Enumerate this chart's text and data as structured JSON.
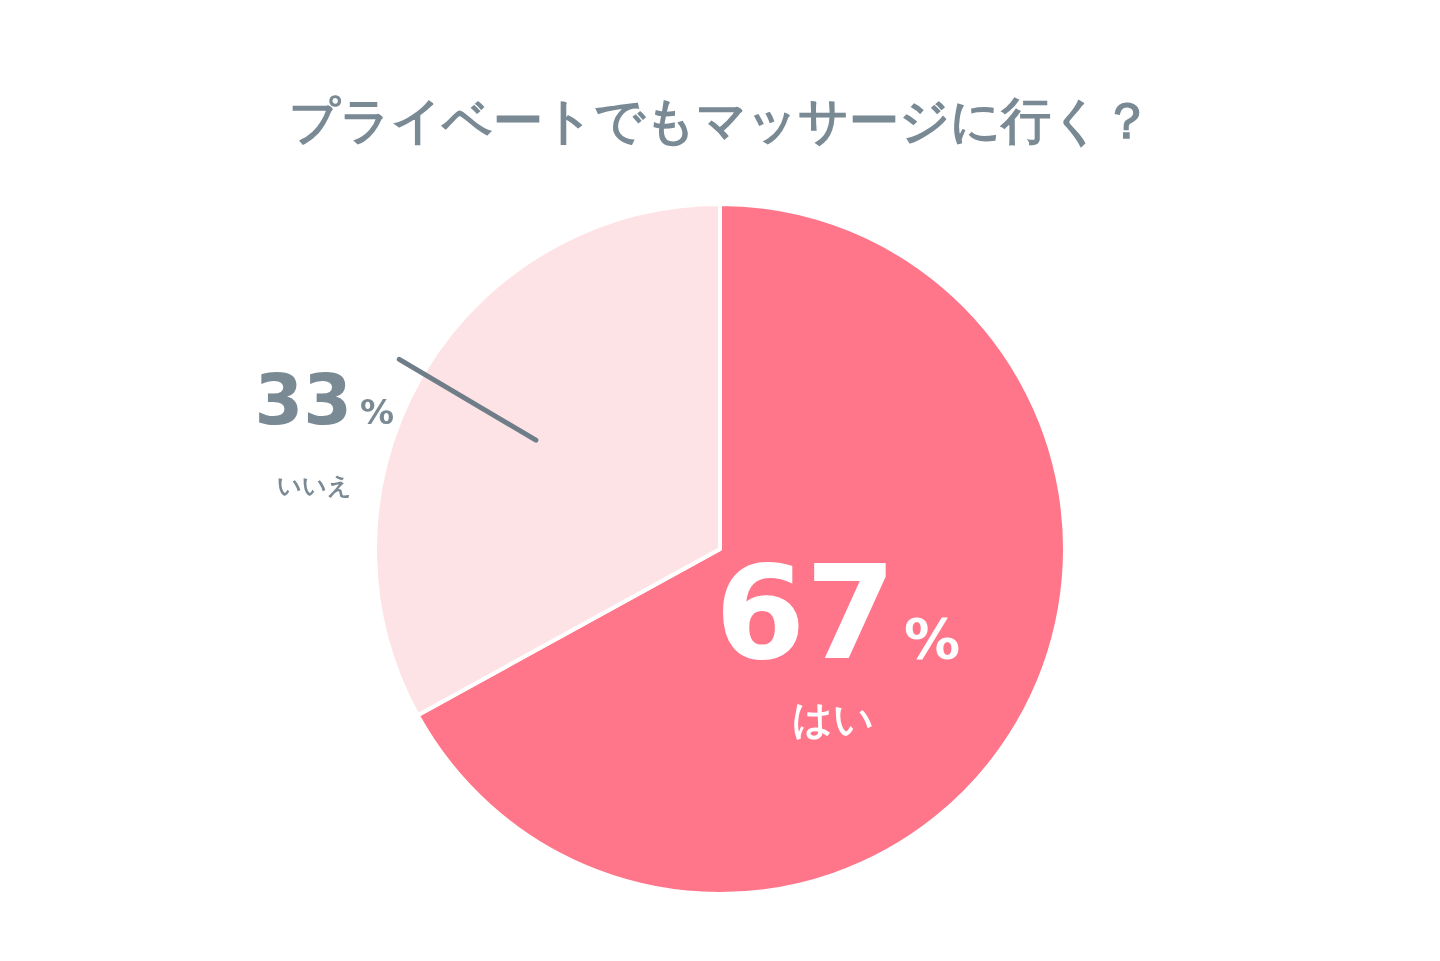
{
  "chart_data": {
    "type": "pie",
    "title": "プライベートでもマッサージに行く？",
    "categories": [
      "はい",
      "いいえ"
    ],
    "values": [
      67,
      33
    ],
    "colors": [
      "#ff7589",
      "#fde3e5"
    ],
    "value_labels": [
      "67%",
      "33%"
    ]
  }
}
